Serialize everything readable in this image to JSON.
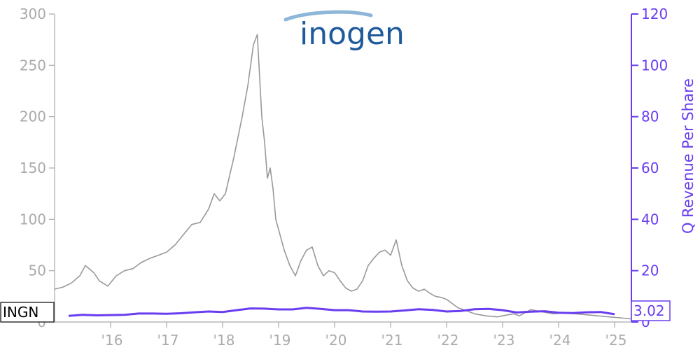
{
  "logo": {
    "text": "inogen",
    "color": "#1e5a9c"
  },
  "chart_data": {
    "type": "line",
    "ticker": "INGN",
    "ylabel_right": "Q Revenue Per Share",
    "last_value_label": "3.02",
    "colors": {
      "price": "#999999",
      "revenue": "#6a3df0",
      "axis_left": "#aaaaaa",
      "axis_right": "#6a3df0"
    },
    "ylim_left": [
      0,
      300
    ],
    "ylim_right": [
      0,
      120
    ],
    "xlim": [
      2015.0,
      2025.3
    ],
    "y_ticks_left": [
      0,
      50,
      100,
      150,
      200,
      250,
      300
    ],
    "y_ticks_right": [
      0,
      20,
      40,
      60,
      80,
      100,
      120
    ],
    "x_ticks": [
      {
        "value": 2016,
        "label": "'16"
      },
      {
        "value": 2017,
        "label": "'17"
      },
      {
        "value": 2018,
        "label": "'18"
      },
      {
        "value": 2019,
        "label": "'19"
      },
      {
        "value": 2020,
        "label": "'20"
      },
      {
        "value": 2021,
        "label": "'21"
      },
      {
        "value": 2022,
        "label": "'22"
      },
      {
        "value": 2023,
        "label": "'23"
      },
      {
        "value": 2024,
        "label": "'24"
      },
      {
        "value": 2025,
        "label": "'25"
      }
    ],
    "grid": false,
    "series": [
      {
        "axis": "left",
        "x": [
          2015.0,
          2015.15,
          2015.3,
          2015.45,
          2015.55,
          2015.7,
          2015.8,
          2015.95,
          2016.1,
          2016.25,
          2016.4,
          2016.55,
          2016.7,
          2016.85,
          2017.0,
          2017.15,
          2017.3,
          2017.45,
          2017.6,
          2017.75,
          2017.85,
          2017.95,
          2018.05,
          2018.2,
          2018.35,
          2018.45,
          2018.55,
          2018.62,
          2018.7,
          2018.75,
          2018.8,
          2018.85,
          2018.9,
          2018.95,
          2019.0,
          2019.05,
          2019.1,
          2019.2,
          2019.3,
          2019.4,
          2019.5,
          2019.6,
          2019.7,
          2019.8,
          2019.9,
          2020.0,
          2020.1,
          2020.2,
          2020.3,
          2020.4,
          2020.5,
          2020.6,
          2020.7,
          2020.8,
          2020.9,
          2021.0,
          2021.1,
          2021.2,
          2021.3,
          2021.4,
          2021.5,
          2021.6,
          2021.7,
          2021.8,
          2021.9,
          2022.0,
          2022.1,
          2022.2,
          2022.3,
          2022.5,
          2022.7,
          2022.9,
          2023.1,
          2023.2,
          2023.3,
          2023.5,
          2023.7,
          2023.9,
          2024.1,
          2024.3,
          2024.5,
          2024.7,
          2024.9,
          2025.1,
          2025.3
        ],
        "values": [
          32,
          34,
          38,
          45,
          55,
          48,
          40,
          35,
          45,
          50,
          52,
          58,
          62,
          65,
          68,
          75,
          85,
          95,
          97,
          110,
          125,
          118,
          125,
          160,
          200,
          230,
          270,
          280,
          200,
          175,
          140,
          150,
          130,
          100,
          90,
          80,
          70,
          55,
          45,
          60,
          70,
          73,
          55,
          45,
          50,
          48,
          40,
          33,
          30,
          32,
          40,
          55,
          62,
          68,
          70,
          65,
          80,
          55,
          40,
          33,
          30,
          32,
          28,
          25,
          24,
          22,
          18,
          14,
          12,
          8,
          6,
          5,
          7,
          8,
          6,
          12,
          10,
          8,
          9,
          8,
          7,
          6,
          5,
          4,
          3
        ]
      },
      {
        "axis": "right",
        "x": [
          2015.25,
          2015.5,
          2015.75,
          2016.0,
          2016.25,
          2016.5,
          2016.75,
          2017.0,
          2017.25,
          2017.5,
          2017.75,
          2018.0,
          2018.25,
          2018.5,
          2018.75,
          2019.0,
          2019.25,
          2019.5,
          2019.75,
          2020.0,
          2020.25,
          2020.5,
          2020.75,
          2021.0,
          2021.25,
          2021.5,
          2021.75,
          2022.0,
          2022.25,
          2022.5,
          2022.75,
          2023.0,
          2023.25,
          2023.5,
          2023.75,
          2024.0,
          2024.25,
          2024.5,
          2024.75,
          2025.0
        ],
        "values": [
          2.4,
          2.8,
          2.6,
          2.7,
          2.8,
          3.3,
          3.3,
          3.2,
          3.4,
          3.8,
          4.1,
          3.9,
          4.6,
          5.3,
          5.2,
          4.9,
          4.9,
          5.5,
          5.1,
          4.6,
          4.6,
          4.1,
          4.0,
          4.1,
          4.5,
          5.0,
          4.7,
          4.1,
          4.3,
          5.0,
          5.1,
          4.6,
          3.7,
          4.0,
          4.2,
          3.6,
          3.5,
          3.8,
          3.9,
          3.02
        ]
      }
    ]
  }
}
